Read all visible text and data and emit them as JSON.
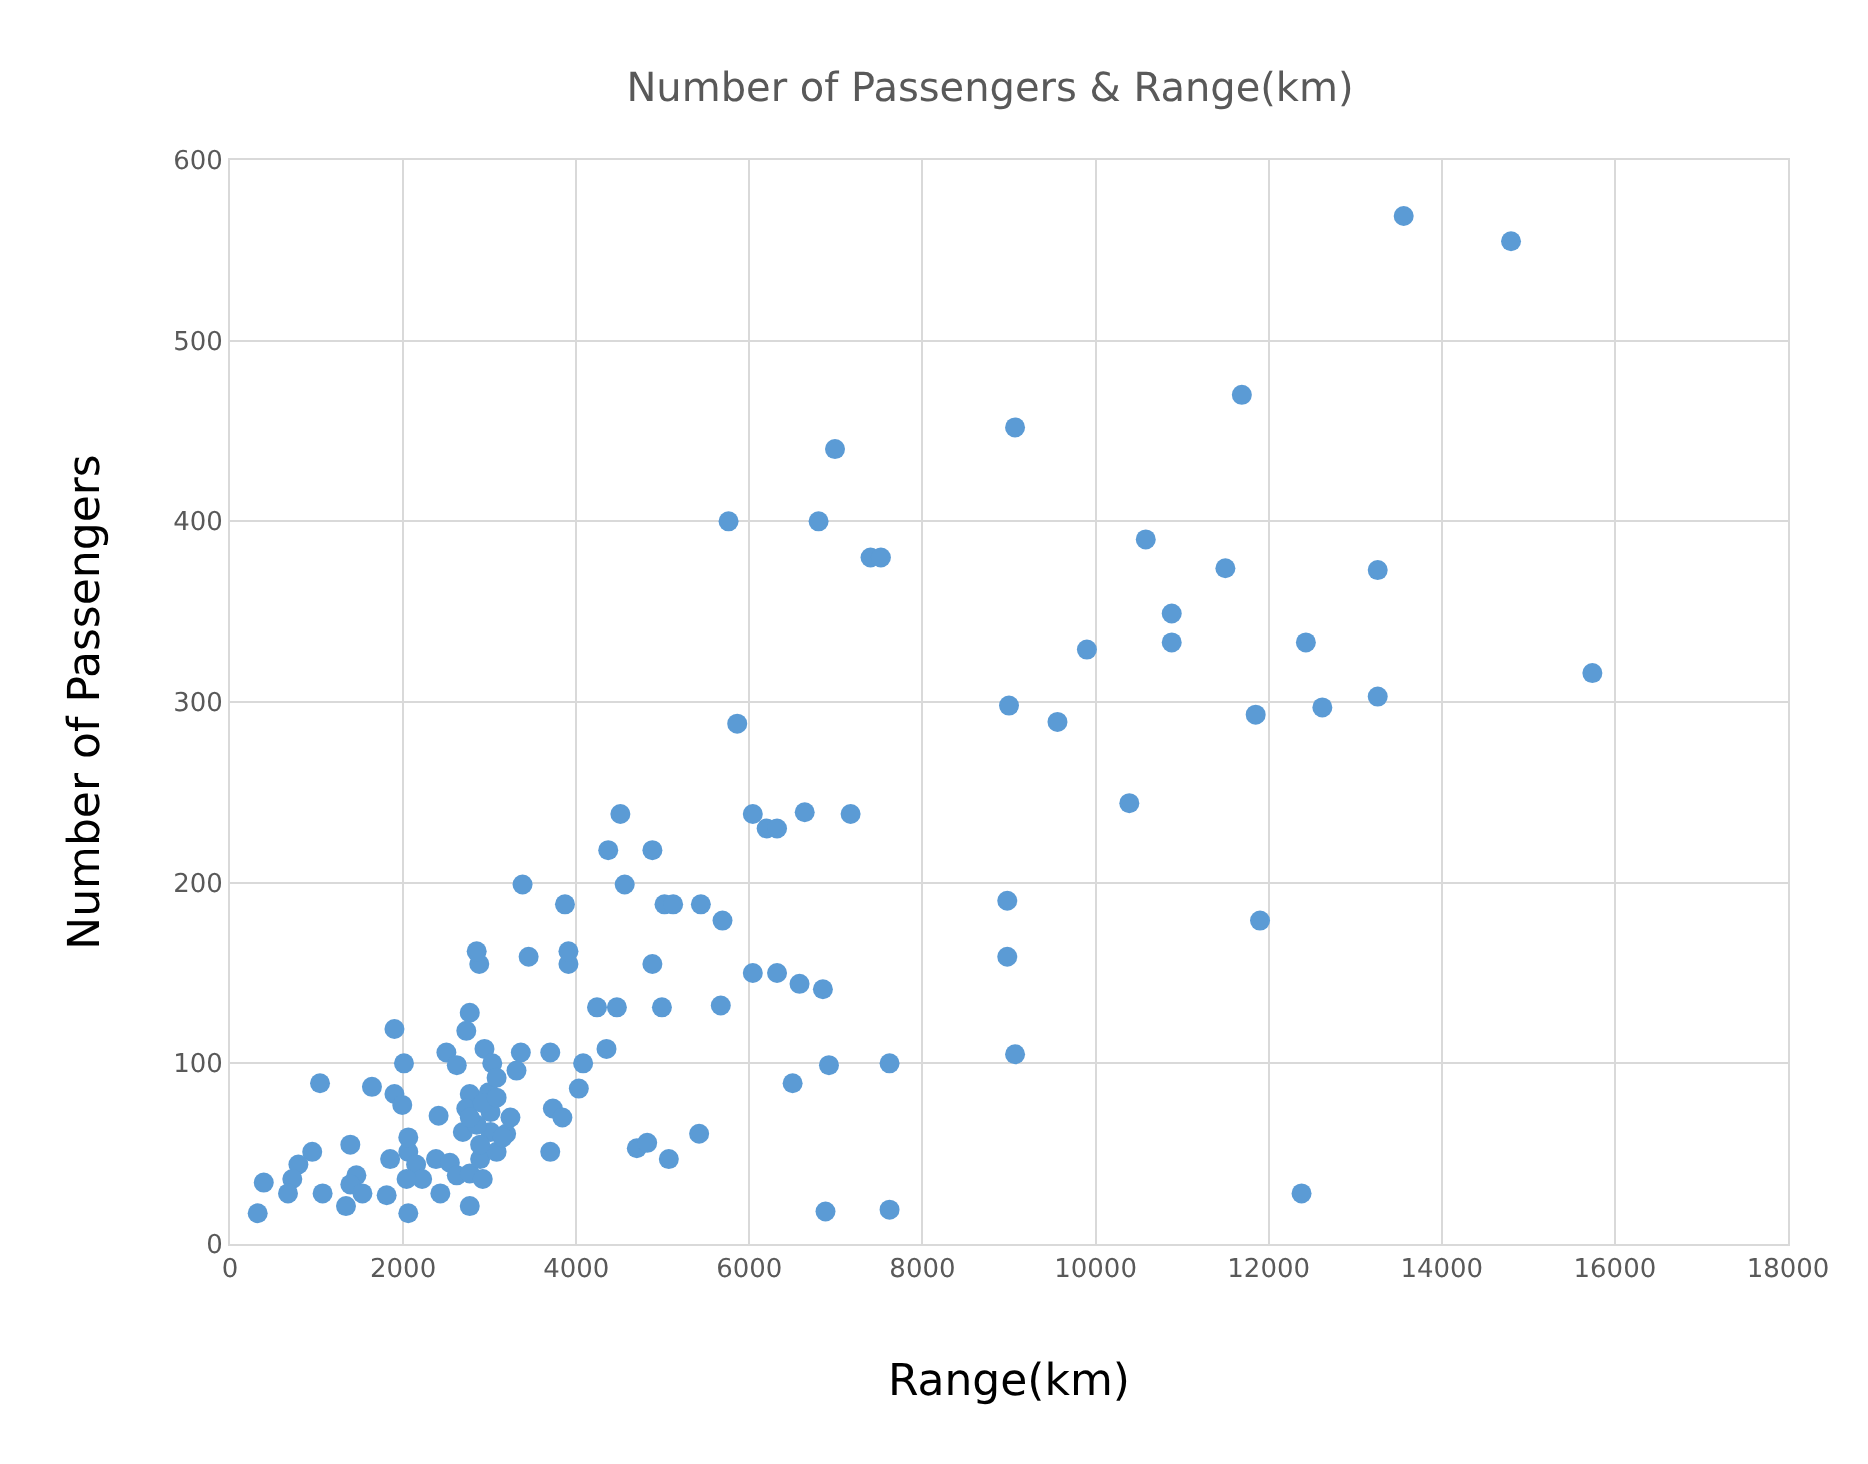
{
  "chart_data": {
    "type": "scatter",
    "title": "Number of Passengers & Range(km)",
    "xlabel": "Range(km)",
    "ylabel": "Number of Passengers",
    "series": [
      {
        "color": "#5b9bd5",
        "x": [
          13560,
          14800,
          11690,
          9070,
          6990,
          5760,
          6800,
          7400,
          7520,
          10580,
          13260,
          11500,
          10880,
          10880,
          9900,
          12430,
          9000,
          9560,
          11850,
          12620,
          13260,
          15740,
          5860,
          10390,
          11900,
          8980,
          8980,
          9070,
          12380,
          4510,
          6040,
          6640,
          7170,
          6200,
          6320,
          4370,
          4880,
          3380,
          4560,
          5020,
          5120,
          5440,
          5690,
          4880,
          4240,
          4470,
          4990,
          5670,
          6040,
          6320,
          6580,
          6850,
          4350,
          4030,
          4080,
          6500,
          6920,
          7620,
          4700,
          4820,
          5070,
          5420,
          6880,
          7620,
          3450,
          3870,
          3910,
          3910,
          3730,
          3700,
          3840,
          2880,
          2850,
          2770,
          1900,
          2730,
          2500,
          2010,
          2940,
          3030,
          2620,
          3360,
          3700,
          1040,
          1640,
          1900,
          1990,
          2770,
          2990,
          3080,
          3310,
          2730,
          3010,
          2410,
          2690,
          3190,
          3010,
          1390,
          950,
          790,
          720,
          670,
          390,
          320,
          1070,
          1460,
          1390,
          1340,
          1530,
          1810,
          2060,
          1850,
          2060,
          2060,
          2150,
          2220,
          2380,
          2540,
          2620,
          2430,
          2040,
          2770,
          2770,
          2890,
          2920,
          3080,
          3150,
          2890,
          2850,
          2770,
          2920,
          3080,
          3240
        ],
        "values": [
          569,
          555,
          470,
          452,
          440,
          400,
          400,
          380,
          380,
          390,
          373,
          374,
          349,
          333,
          329,
          333,
          298,
          289,
          293,
          297,
          303,
          316,
          288,
          244,
          179,
          190,
          159,
          105,
          28,
          238,
          238,
          239,
          238,
          230,
          230,
          218,
          218,
          199,
          199,
          188,
          188,
          188,
          179,
          155,
          131,
          131,
          131,
          132,
          150,
          150,
          144,
          141,
          108,
          86,
          100,
          89,
          99,
          100,
          53,
          56,
          47,
          61,
          18,
          19,
          159,
          188,
          155,
          162,
          75,
          51,
          70,
          155,
          162,
          128,
          119,
          118,
          106,
          100,
          108,
          100,
          99,
          106,
          106,
          89,
          87,
          83,
          77,
          83,
          84,
          92,
          96,
          75,
          73,
          71,
          62,
          61,
          62,
          55,
          51,
          44,
          36,
          28,
          34,
          17,
          28,
          38,
          33,
          21,
          28,
          27,
          17,
          47,
          51,
          59,
          44,
          36,
          47,
          45,
          38,
          28,
          36,
          21,
          39,
          47,
          36,
          51,
          59,
          55,
          66,
          70,
          78,
          81,
          70
        ]
      }
    ],
    "xlim": [
      0,
      18000
    ],
    "xticks": [
      0,
      2000,
      4000,
      6000,
      8000,
      10000,
      12000,
      14000,
      16000,
      18000
    ],
    "ylim": [
      0,
      600
    ],
    "yticks": [
      0,
      100,
      200,
      300,
      400,
      500,
      600
    ],
    "grid": true,
    "marker": "circle"
  }
}
